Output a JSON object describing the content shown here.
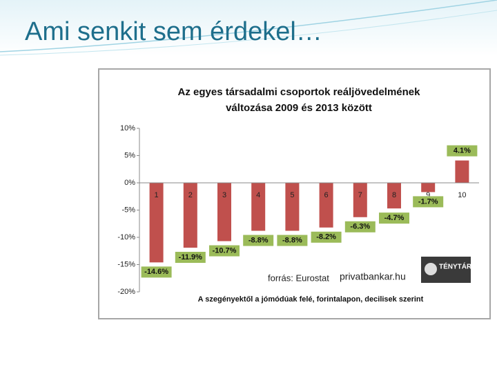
{
  "slide_title": "Ami senkit sem érdekel…",
  "chart_data": {
    "type": "bar",
    "title": [
      "Az egyes társadalmi csoportok reáljövedelmének",
      "változása 2009 és 2013 között"
    ],
    "x_label": "A szegényektől a jómódúak felé, forintalapon, decilisek szerint",
    "categories": [
      "1",
      "2",
      "3",
      "4",
      "5",
      "6",
      "7",
      "8",
      "9",
      "10"
    ],
    "values": [
      -14.6,
      -11.9,
      -10.7,
      -8.8,
      -8.8,
      -8.2,
      -6.3,
      -4.7,
      -1.7,
      4.1
    ],
    "value_labels": [
      "-14.6%",
      "-11.9%",
      "-10.7%",
      "-8.8%",
      "-8.8%",
      "-8.2%",
      "-6.3%",
      "-4.7%",
      "-1.7%",
      "4.1%"
    ],
    "color": "#c0504d",
    "label_color": "#9bbb59",
    "ylim": [
      -20,
      10
    ],
    "yticks": [
      {
        "value": 10,
        "label": "10%"
      },
      {
        "value": 5,
        "label": "5%"
      },
      {
        "value": 0,
        "label": "0%"
      },
      {
        "value": -5,
        "label": "-5%"
      },
      {
        "value": -10,
        "label": "-10%"
      },
      {
        "value": -15,
        "label": "-15%"
      },
      {
        "value": -20,
        "label": "-20%"
      }
    ],
    "grid": false,
    "annotations": [
      "forrás: Eurostat",
      "privatbankar.hu"
    ],
    "logo": "TÉNYTÁR"
  }
}
